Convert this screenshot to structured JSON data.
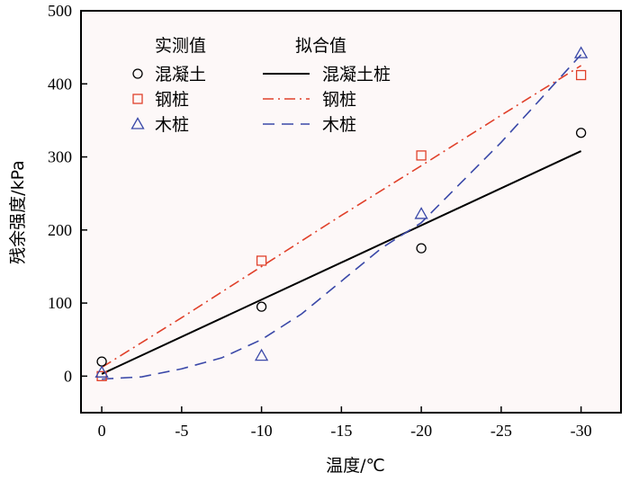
{
  "chart_data": {
    "type": "scatter",
    "xlabel": "温度/℃",
    "ylabel": "残余强度/kPa",
    "x_ticks": [
      0,
      -5,
      -10,
      -15,
      -20,
      -25,
      -30
    ],
    "x_tick_labels": [
      "0",
      "-5",
      "-10",
      "-15",
      "-20",
      "-25",
      "-30"
    ],
    "y_ticks": [
      0,
      100,
      200,
      300,
      400,
      500
    ],
    "y_tick_labels": [
      "0",
      "100",
      "200",
      "300",
      "400",
      "500"
    ],
    "xlim": [
      1.3,
      -32.5
    ],
    "ylim": [
      -50,
      500
    ],
    "grid": false,
    "legend": {
      "placement": "top-left",
      "measured_header": "实测值",
      "fitted_header": "拟合值"
    },
    "series": [
      {
        "name": "混凝土",
        "fit_name": "混凝土桩",
        "marker": "circle",
        "color": "#000000",
        "line_style": "solid",
        "x": [
          0,
          -10,
          -20,
          -30
        ],
        "y": [
          20,
          95,
          175,
          333
        ],
        "fit": {
          "x": [
            0,
            -30
          ],
          "y": [
            3,
            308
          ]
        }
      },
      {
        "name": "钢桩",
        "fit_name": "钢桩",
        "marker": "square",
        "color": "#e0402a",
        "line_style": "dashdot",
        "x": [
          0,
          -10,
          -20,
          -30
        ],
        "y": [
          0,
          158,
          302,
          412
        ],
        "fit": {
          "x": [
            0,
            -5,
            -10,
            -15,
            -20,
            -25,
            -30
          ],
          "y": [
            12,
            80,
            150,
            220,
            288,
            357,
            425
          ]
        }
      },
      {
        "name": "木桩",
        "fit_name": "木桩",
        "marker": "triangle",
        "color": "#3a48a8",
        "line_style": "dashed",
        "x": [
          0,
          -10,
          -20,
          -30
        ],
        "y": [
          5,
          28,
          222,
          442
        ],
        "fit": {
          "x": [
            0,
            -2.5,
            -5,
            -7.5,
            -10,
            -12.5,
            -15,
            -17.5,
            -20,
            -22.5,
            -25,
            -27.5,
            -30
          ],
          "y": [
            -4,
            -1,
            10,
            25,
            50,
            85,
            130,
            175,
            210,
            265,
            320,
            380,
            440
          ]
        }
      }
    ]
  }
}
